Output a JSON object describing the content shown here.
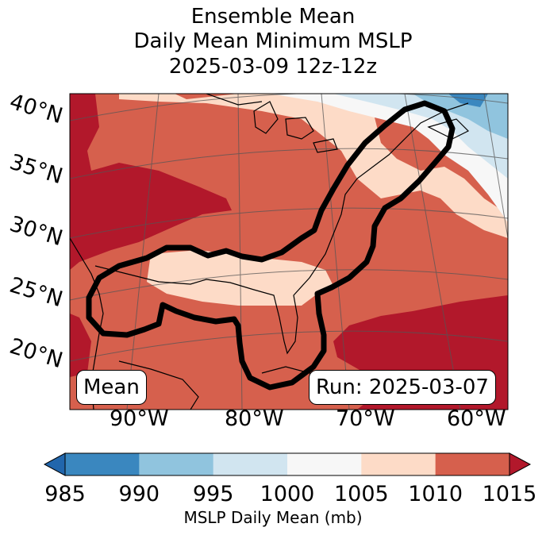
{
  "title": {
    "line1": "Ensemble Mean",
    "line2": "Daily Mean Minimum MSLP",
    "line3": "2025-03-09 12z-12z"
  },
  "lat_labels": [
    "40°N",
    "35°N",
    "30°N",
    "25°N",
    "20°N"
  ],
  "lon_labels": [
    "90°W",
    "80°W",
    "70°W",
    "60°W"
  ],
  "mean_label": "Mean",
  "run_label": "Run: 2025-03-07",
  "colorbar": {
    "ticks": [
      "985",
      "990",
      "995",
      "1000",
      "1005",
      "1010",
      "1015"
    ],
    "colors": [
      "#3a87bf",
      "#90c4de",
      "#d1e5f0",
      "#f7f7f7",
      "#fddbc7",
      "#d6604d",
      "#b2182b"
    ],
    "extend_low_color": "#2166ac",
    "extend_high_color": "#b2182b",
    "label": "MSLP Daily Mean (mb)"
  }
}
